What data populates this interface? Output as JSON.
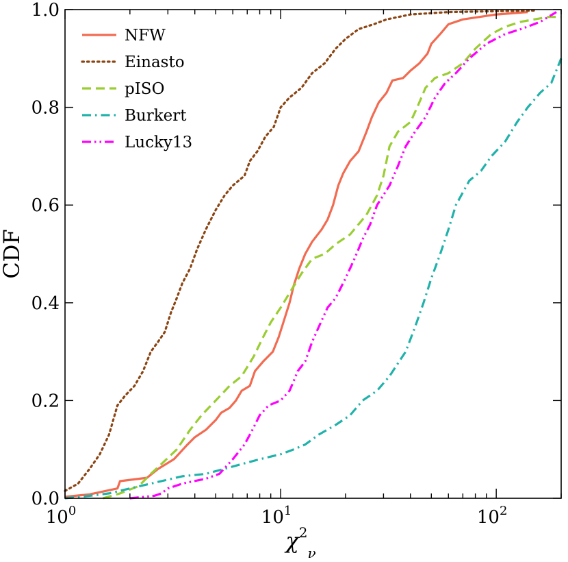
{
  "chart_data": {
    "type": "line",
    "title": "",
    "xlabel": "χ²_ν",
    "xlabel_base": "χ",
    "xlabel_sup": "2",
    "xlabel_sub": "ν",
    "ylabel": "CDF",
    "xscale": "log",
    "xlim": [
      1,
      200
    ],
    "ylim": [
      0,
      1.0
    ],
    "x_ticks": [
      {
        "value": 1,
        "base": "10",
        "exp": "0"
      },
      {
        "value": 10,
        "base": "10",
        "exp": "1"
      },
      {
        "value": 100,
        "base": "10",
        "exp": "2"
      }
    ],
    "y_ticks": [
      {
        "value": 0.0,
        "label": "0.0"
      },
      {
        "value": 0.2,
        "label": "0.2"
      },
      {
        "value": 0.4,
        "label": "0.4"
      },
      {
        "value": 0.6,
        "label": "0.6"
      },
      {
        "value": 0.8,
        "label": "0.8"
      },
      {
        "value": 1.0,
        "label": "1.0"
      }
    ],
    "legend_position": "top-left",
    "series": [
      {
        "name": "NFW",
        "color": "#f26b50",
        "dash": "solid",
        "points": [
          [
            1.0,
            0.003
          ],
          [
            1.3,
            0.008
          ],
          [
            1.75,
            0.02
          ],
          [
            1.8,
            0.035
          ],
          [
            2.4,
            0.042
          ],
          [
            2.7,
            0.06
          ],
          [
            3.2,
            0.08
          ],
          [
            3.7,
            0.11
          ],
          [
            4.0,
            0.125
          ],
          [
            4.5,
            0.14
          ],
          [
            5.0,
            0.16
          ],
          [
            5.3,
            0.175
          ],
          [
            5.8,
            0.185
          ],
          [
            6.2,
            0.2
          ],
          [
            6.6,
            0.22
          ],
          [
            7.2,
            0.23
          ],
          [
            7.6,
            0.26
          ],
          [
            8.3,
            0.28
          ],
          [
            9.2,
            0.3
          ],
          [
            9.8,
            0.33
          ],
          [
            10.3,
            0.36
          ],
          [
            11.0,
            0.4
          ],
          [
            11.5,
            0.435
          ],
          [
            12.2,
            0.47
          ],
          [
            13.0,
            0.5
          ],
          [
            14.0,
            0.525
          ],
          [
            15.5,
            0.55
          ],
          [
            16.5,
            0.57
          ],
          [
            17.5,
            0.6
          ],
          [
            18.5,
            0.64
          ],
          [
            19.5,
            0.665
          ],
          [
            21.0,
            0.69
          ],
          [
            23.0,
            0.71
          ],
          [
            25.0,
            0.75
          ],
          [
            26.5,
            0.78
          ],
          [
            28.5,
            0.81
          ],
          [
            31.0,
            0.83
          ],
          [
            33.0,
            0.855
          ],
          [
            37.0,
            0.86
          ],
          [
            40.0,
            0.875
          ],
          [
            44.0,
            0.89
          ],
          [
            48.0,
            0.91
          ],
          [
            50.0,
            0.93
          ],
          [
            55.0,
            0.95
          ],
          [
            60.0,
            0.97
          ],
          [
            70.0,
            0.98
          ],
          [
            100.0,
            0.99
          ],
          [
            140.0,
            0.995
          ]
        ]
      },
      {
        "name": "Einasto",
        "color": "#8b4513",
        "dash": "dotted",
        "points": [
          [
            1.0,
            0.015
          ],
          [
            1.15,
            0.03
          ],
          [
            1.3,
            0.06
          ],
          [
            1.45,
            0.09
          ],
          [
            1.6,
            0.13
          ],
          [
            1.75,
            0.19
          ],
          [
            1.9,
            0.21
          ],
          [
            2.1,
            0.23
          ],
          [
            2.3,
            0.26
          ],
          [
            2.5,
            0.3
          ],
          [
            2.7,
            0.32
          ],
          [
            2.9,
            0.34
          ],
          [
            3.1,
            0.38
          ],
          [
            3.3,
            0.41
          ],
          [
            3.5,
            0.44
          ],
          [
            3.8,
            0.47
          ],
          [
            4.1,
            0.51
          ],
          [
            4.5,
            0.55
          ],
          [
            5.0,
            0.59
          ],
          [
            5.5,
            0.62
          ],
          [
            6.0,
            0.64
          ],
          [
            6.8,
            0.66
          ],
          [
            7.2,
            0.69
          ],
          [
            7.8,
            0.71
          ],
          [
            8.5,
            0.74
          ],
          [
            9.3,
            0.76
          ],
          [
            10.0,
            0.8
          ],
          [
            11.0,
            0.82
          ],
          [
            12.5,
            0.84
          ],
          [
            14.0,
            0.87
          ],
          [
            16.0,
            0.89
          ],
          [
            18.0,
            0.92
          ],
          [
            20.0,
            0.94
          ],
          [
            23.0,
            0.96
          ],
          [
            27.0,
            0.97
          ],
          [
            31.0,
            0.98
          ],
          [
            40.0,
            0.99
          ],
          [
            60.0,
            0.995
          ],
          [
            150.0,
            0.998
          ]
        ]
      },
      {
        "name": "pISO",
        "color": "#9acd32",
        "dash": "dashed",
        "points": [
          [
            1.5,
            0.0
          ],
          [
            1.8,
            0.01
          ],
          [
            2.2,
            0.025
          ],
          [
            2.5,
            0.05
          ],
          [
            2.8,
            0.07
          ],
          [
            3.3,
            0.1
          ],
          [
            3.8,
            0.14
          ],
          [
            4.3,
            0.17
          ],
          [
            5.0,
            0.2
          ],
          [
            5.8,
            0.23
          ],
          [
            6.6,
            0.25
          ],
          [
            7.5,
            0.29
          ],
          [
            8.3,
            0.33
          ],
          [
            9.0,
            0.36
          ],
          [
            10.0,
            0.39
          ],
          [
            11.0,
            0.42
          ],
          [
            12.5,
            0.46
          ],
          [
            14.0,
            0.49
          ],
          [
            16.0,
            0.5
          ],
          [
            18.0,
            0.52
          ],
          [
            21.0,
            0.54
          ],
          [
            25.0,
            0.58
          ],
          [
            28.0,
            0.62
          ],
          [
            30.0,
            0.66
          ],
          [
            32.0,
            0.72
          ],
          [
            35.0,
            0.75
          ],
          [
            40.0,
            0.77
          ],
          [
            43.0,
            0.8
          ],
          [
            47.0,
            0.84
          ],
          [
            52.0,
            0.86
          ],
          [
            60.0,
            0.87
          ],
          [
            70.0,
            0.89
          ],
          [
            80.0,
            0.92
          ],
          [
            95.0,
            0.95
          ],
          [
            110.0,
            0.965
          ],
          [
            130.0,
            0.975
          ],
          [
            150.0,
            0.98
          ],
          [
            175.0,
            0.985
          ],
          [
            200.0,
            0.985
          ]
        ]
      },
      {
        "name": "Burkert",
        "color": "#20b2aa",
        "dash": "dashdot",
        "points": [
          [
            1.0,
            0.0
          ],
          [
            1.3,
            0.005
          ],
          [
            1.6,
            0.01
          ],
          [
            2.0,
            0.02
          ],
          [
            2.5,
            0.03
          ],
          [
            3.5,
            0.045
          ],
          [
            4.5,
            0.05
          ],
          [
            6.0,
            0.065
          ],
          [
            8.0,
            0.08
          ],
          [
            10.0,
            0.09
          ],
          [
            11.5,
            0.1
          ],
          [
            13.0,
            0.11
          ],
          [
            15.0,
            0.13
          ],
          [
            18.0,
            0.15
          ],
          [
            21.0,
            0.17
          ],
          [
            24.0,
            0.2
          ],
          [
            28.0,
            0.22
          ],
          [
            32.0,
            0.25
          ],
          [
            38.0,
            0.3
          ],
          [
            42.0,
            0.35
          ],
          [
            46.0,
            0.4
          ],
          [
            50.0,
            0.45
          ],
          [
            55.0,
            0.5
          ],
          [
            60.0,
            0.55
          ],
          [
            65.0,
            0.6
          ],
          [
            75.0,
            0.65
          ],
          [
            85.0,
            0.67
          ],
          [
            95.0,
            0.7
          ],
          [
            110.0,
            0.73
          ],
          [
            125.0,
            0.77
          ],
          [
            140.0,
            0.8
          ],
          [
            160.0,
            0.83
          ],
          [
            180.0,
            0.85
          ],
          [
            200.0,
            0.9
          ]
        ]
      },
      {
        "name": "Lucky13",
        "color": "#ff00ff",
        "dash": "dashdotdot",
        "points": [
          [
            2.0,
            0.0
          ],
          [
            2.6,
            0.005
          ],
          [
            2.8,
            0.01
          ],
          [
            3.0,
            0.02
          ],
          [
            3.5,
            0.03
          ],
          [
            4.5,
            0.04
          ],
          [
            5.2,
            0.05
          ],
          [
            6.0,
            0.08
          ],
          [
            6.8,
            0.11
          ],
          [
            7.4,
            0.14
          ],
          [
            8.0,
            0.17
          ],
          [
            8.8,
            0.19
          ],
          [
            10.0,
            0.2
          ],
          [
            11.0,
            0.22
          ],
          [
            11.5,
            0.24
          ],
          [
            12.0,
            0.26
          ],
          [
            13.0,
            0.28
          ],
          [
            14.0,
            0.32
          ],
          [
            15.0,
            0.35
          ],
          [
            16.5,
            0.39
          ],
          [
            18.0,
            0.41
          ],
          [
            20.0,
            0.45
          ],
          [
            22.0,
            0.49
          ],
          [
            24.0,
            0.53
          ],
          [
            26.0,
            0.56
          ],
          [
            28.0,
            0.6
          ],
          [
            32.0,
            0.64
          ],
          [
            35.0,
            0.68
          ],
          [
            38.0,
            0.72
          ],
          [
            42.0,
            0.75
          ],
          [
            47.0,
            0.78
          ],
          [
            52.0,
            0.82
          ],
          [
            58.0,
            0.85
          ],
          [
            65.0,
            0.87
          ],
          [
            75.0,
            0.9
          ],
          [
            90.0,
            0.93
          ],
          [
            110.0,
            0.95
          ],
          [
            130.0,
            0.96
          ],
          [
            160.0,
            0.975
          ],
          [
            190.0,
            0.995
          ]
        ]
      }
    ]
  }
}
